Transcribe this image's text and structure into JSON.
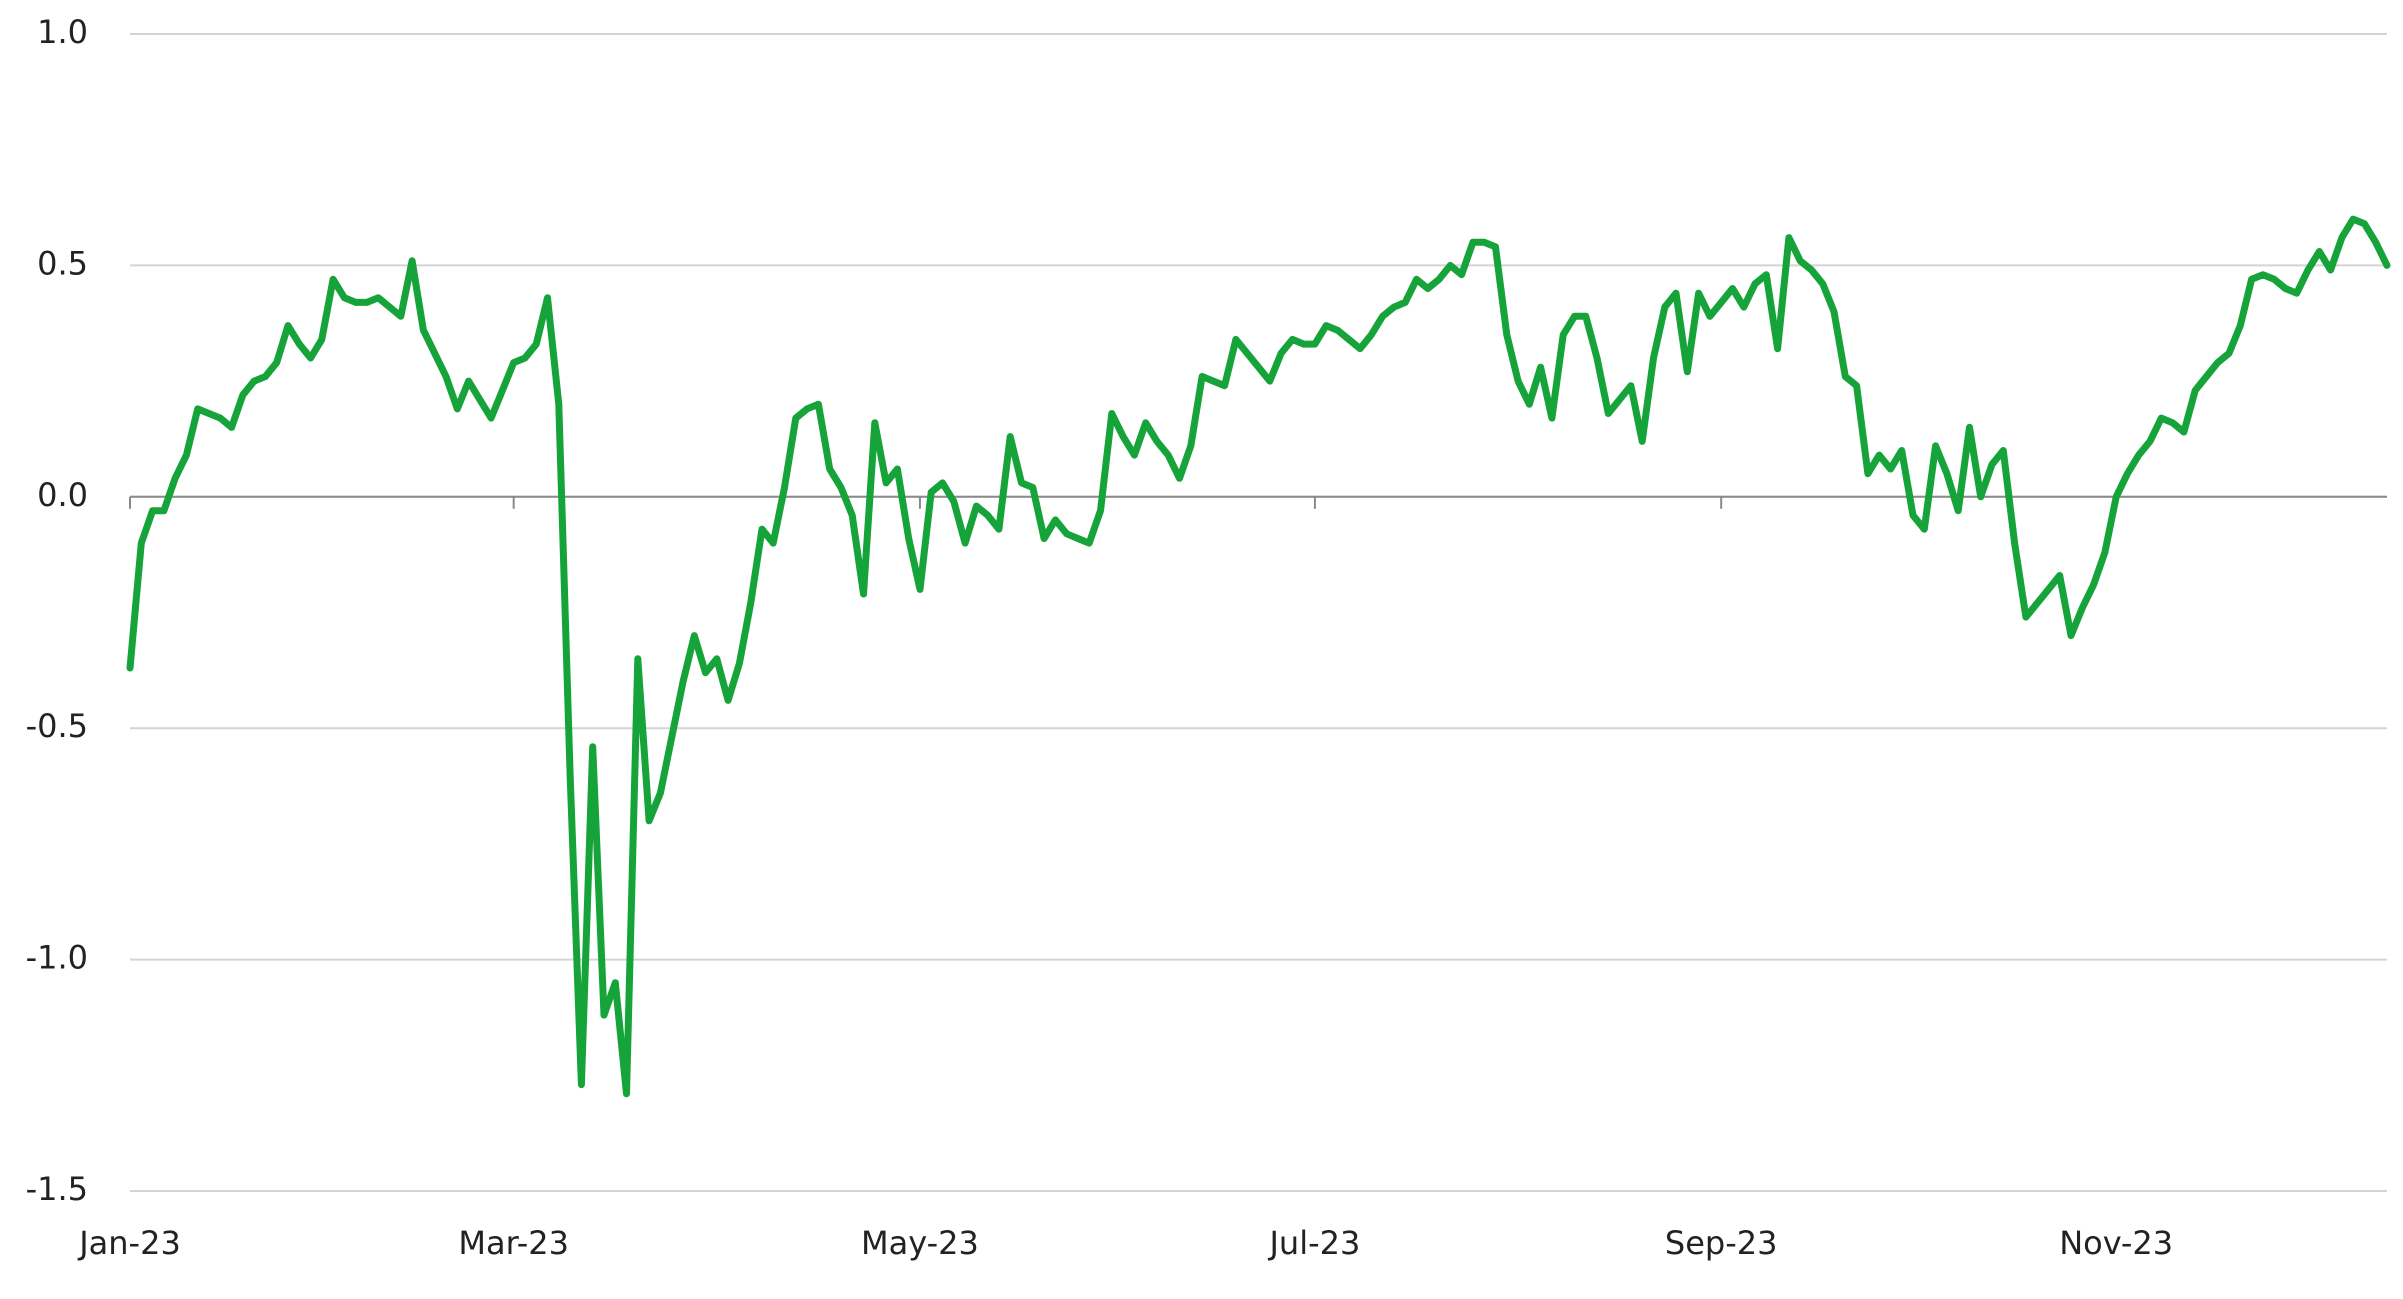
{
  "chart_data": {
    "type": "line",
    "categories": [
      "Jan-23",
      null,
      null,
      null,
      null,
      null,
      null,
      null,
      null,
      null,
      null,
      null,
      null,
      null,
      null,
      null,
      null,
      null,
      null,
      null,
      null,
      null,
      null,
      null,
      null,
      null,
      null,
      null,
      null,
      null,
      null,
      null,
      null,
      null,
      "Mar-23",
      null,
      null,
      null,
      null,
      null,
      null,
      null,
      null,
      null,
      null,
      null,
      null,
      null,
      null,
      null,
      null,
      null,
      null,
      null,
      null,
      null,
      null,
      null,
      null,
      null,
      null,
      null,
      null,
      null,
      null,
      null,
      null,
      null,
      null,
      null,
      "May-23",
      null,
      null,
      null,
      null,
      null,
      null,
      null,
      null,
      null,
      null,
      null,
      null,
      null,
      null,
      null,
      null,
      null,
      null,
      null,
      null,
      null,
      null,
      null,
      null,
      null,
      null,
      null,
      null,
      null,
      null,
      null,
      null,
      null,
      null,
      "Jul-23",
      null,
      null,
      null,
      null,
      null,
      null,
      null,
      null,
      null,
      null,
      null,
      null,
      null,
      null,
      null,
      null,
      null,
      null,
      null,
      null,
      null,
      null,
      null,
      null,
      null,
      null,
      null,
      null,
      null,
      null,
      null,
      null,
      null,
      null,
      null,
      "Sep-23",
      null,
      null,
      null,
      null,
      null,
      null,
      null,
      null,
      null,
      null,
      null,
      null,
      null,
      null,
      null,
      null,
      null,
      null,
      null,
      null,
      null,
      null,
      null,
      null,
      null,
      null,
      null,
      null,
      null,
      null,
      null,
      null,
      null,
      null,
      "Nov-23",
      null,
      null,
      null,
      null,
      null,
      null,
      null,
      null,
      null,
      null,
      null,
      null,
      null,
      null,
      null,
      null,
      null,
      null,
      null,
      null,
      null,
      null,
      null,
      null
    ],
    "values": [
      -0.37,
      -0.1,
      -0.03,
      -0.03,
      0.04,
      0.09,
      0.19,
      0.18,
      0.17,
      0.15,
      0.22,
      0.25,
      0.26,
      0.29,
      0.37,
      0.33,
      0.3,
      0.34,
      0.47,
      0.43,
      0.42,
      0.42,
      0.43,
      0.41,
      0.39,
      0.51,
      0.36,
      0.31,
      0.26,
      0.19,
      0.25,
      0.21,
      0.17,
      0.23,
      0.29,
      0.3,
      0.33,
      0.43,
      0.2,
      -0.6,
      -1.27,
      -0.54,
      -1.12,
      -1.05,
      -1.29,
      -0.35,
      -0.7,
      -0.64,
      -0.52,
      -0.4,
      -0.3,
      -0.38,
      -0.35,
      -0.44,
      -0.36,
      -0.23,
      -0.07,
      -0.1,
      0.02,
      0.17,
      0.19,
      0.2,
      0.06,
      0.02,
      -0.04,
      -0.21,
      0.16,
      0.03,
      0.06,
      -0.09,
      -0.2,
      0.01,
      0.03,
      -0.01,
      -0.1,
      -0.02,
      -0.04,
      -0.07,
      0.13,
      0.03,
      0.02,
      -0.09,
      -0.05,
      -0.08,
      -0.09,
      -0.1,
      -0.03,
      0.18,
      0.13,
      0.09,
      0.16,
      0.12,
      0.09,
      0.04,
      0.11,
      0.26,
      0.25,
      0.24,
      0.34,
      0.31,
      0.28,
      0.25,
      0.31,
      0.34,
      0.33,
      0.33,
      0.37,
      0.36,
      0.34,
      0.32,
      0.35,
      0.39,
      0.41,
      0.42,
      0.47,
      0.45,
      0.47,
      0.5,
      0.48,
      0.55,
      0.55,
      0.54,
      0.35,
      0.25,
      0.2,
      0.28,
      0.17,
      0.35,
      0.39,
      0.39,
      0.3,
      0.18,
      0.21,
      0.24,
      0.12,
      0.3,
      0.41,
      0.44,
      0.27,
      0.44,
      0.39,
      0.42,
      0.45,
      0.41,
      0.46,
      0.48,
      0.32,
      0.56,
      0.51,
      0.49,
      0.46,
      0.4,
      0.26,
      0.24,
      0.05,
      0.09,
      0.06,
      0.1,
      -0.04,
      -0.07,
      0.11,
      0.05,
      -0.03,
      0.15,
      0.0,
      0.07,
      0.1,
      -0.1,
      -0.26,
      -0.23,
      -0.2,
      -0.17,
      -0.3,
      -0.24,
      -0.19,
      -0.12,
      0.0,
      0.05,
      0.09,
      0.12,
      0.17,
      0.16,
      0.14,
      0.23,
      0.26,
      0.29,
      0.31,
      0.37,
      0.47,
      0.48,
      0.47,
      0.45,
      0.44,
      0.49,
      0.53,
      0.49,
      0.56,
      0.6,
      0.59,
      0.55,
      0.5
    ],
    "color": "#16a43a",
    "ylim": [
      -1.5,
      1.0
    ],
    "yticks": [
      {
        "value": 1,
        "label": "1.0"
      },
      0.5,
      {
        "value": 0,
        "label": "0.0"
      },
      -0.5,
      {
        "value": -1,
        "label": "-1.0"
      },
      -1.5
    ],
    "grid": true
  }
}
